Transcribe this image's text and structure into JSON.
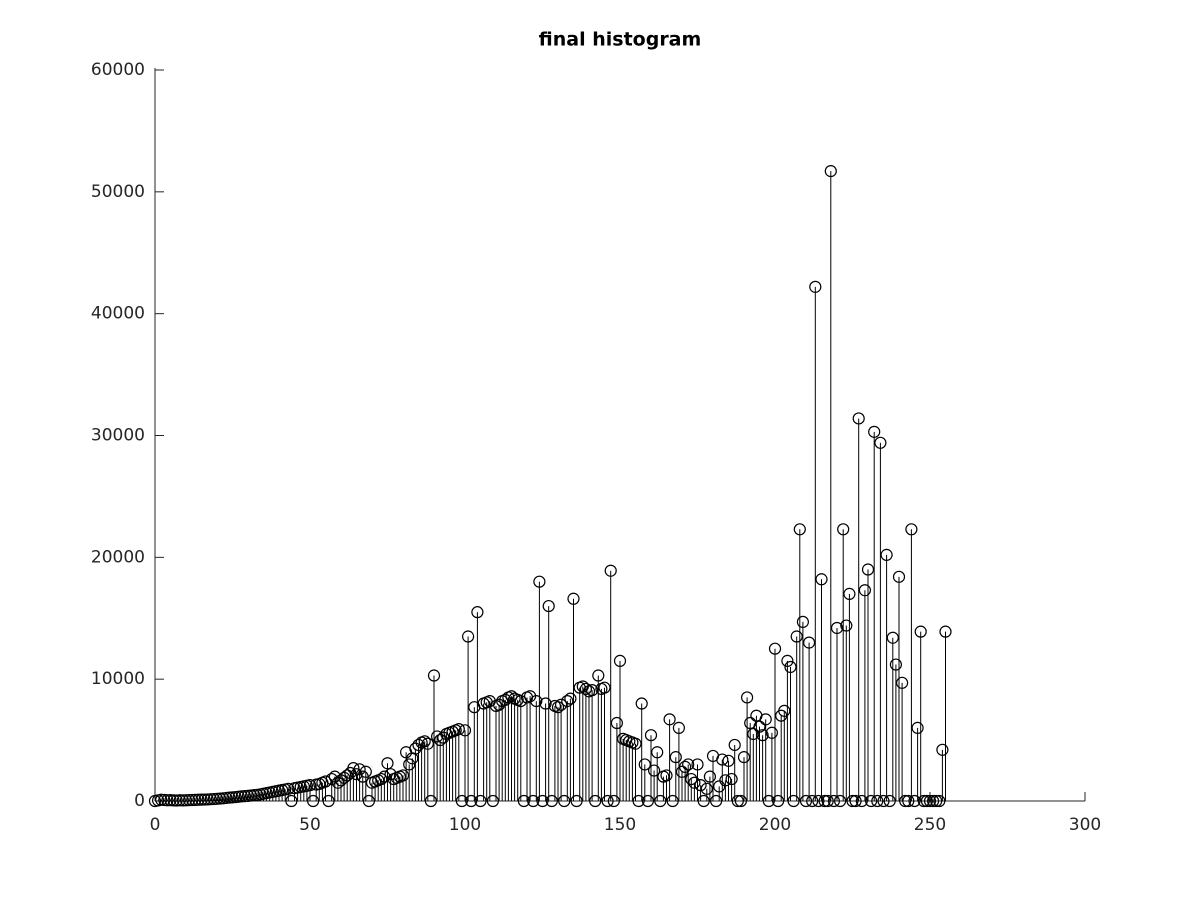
{
  "chart_data": {
    "type": "stem",
    "title": "final histogram",
    "color": "#000000",
    "x": [
      0,
      1,
      2,
      3,
      4,
      5,
      6,
      7,
      8,
      9,
      10,
      11,
      12,
      13,
      14,
      15,
      16,
      17,
      18,
      19,
      20,
      21,
      22,
      23,
      24,
      25,
      26,
      27,
      28,
      29,
      30,
      31,
      32,
      33,
      34,
      35,
      36,
      37,
      38,
      39,
      40,
      41,
      42,
      43,
      44,
      45,
      46,
      47,
      48,
      49,
      50,
      51,
      52,
      53,
      54,
      55,
      56,
      57,
      58,
      59,
      60,
      61,
      62,
      63,
      64,
      65,
      66,
      67,
      68,
      69,
      70,
      71,
      72,
      73,
      74,
      75,
      76,
      77,
      78,
      79,
      80,
      81,
      82,
      83,
      84,
      85,
      86,
      87,
      88,
      89,
      90,
      91,
      92,
      93,
      94,
      95,
      96,
      97,
      98,
      99,
      100,
      101,
      102,
      103,
      104,
      105,
      106,
      107,
      108,
      109,
      110,
      111,
      112,
      113,
      114,
      115,
      116,
      117,
      118,
      119,
      120,
      121,
      122,
      123,
      124,
      125,
      126,
      127,
      128,
      129,
      130,
      131,
      132,
      133,
      134,
      135,
      136,
      137,
      138,
      139,
      140,
      141,
      142,
      143,
      144,
      145,
      146,
      147,
      148,
      149,
      150,
      151,
      152,
      153,
      154,
      155,
      156,
      157,
      158,
      159,
      160,
      161,
      162,
      163,
      164,
      165,
      166,
      167,
      168,
      169,
      170,
      171,
      172,
      173,
      174,
      175,
      176,
      177,
      178,
      179,
      180,
      181,
      182,
      183,
      184,
      185,
      186,
      187,
      188,
      189,
      190,
      191,
      192,
      193,
      194,
      195,
      196,
      197,
      198,
      199,
      200,
      201,
      202,
      203,
      204,
      205,
      206,
      207,
      208,
      209,
      210,
      211,
      212,
      213,
      214,
      215,
      216,
      217,
      218,
      219,
      220,
      221,
      222,
      223,
      224,
      225,
      226,
      227,
      228,
      229,
      230,
      231,
      232,
      233,
      234,
      235,
      236,
      237,
      238,
      239,
      240,
      241,
      242,
      243,
      244,
      245,
      246,
      247,
      248,
      249,
      250,
      251,
      252,
      253,
      254,
      255
    ],
    "values": [
      0,
      50,
      100,
      80,
      60,
      70,
      50,
      40,
      60,
      50,
      60,
      70,
      80,
      90,
      100,
      110,
      120,
      130,
      150,
      160,
      180,
      200,
      220,
      250,
      280,
      300,
      320,
      350,
      380,
      400,
      420,
      450,
      480,
      500,
      550,
      600,
      650,
      700,
      750,
      800,
      850,
      900,
      950,
      1000,
      0,
      1050,
      1100,
      1150,
      1200,
      1250,
      1300,
      0,
      1350,
      1400,
      1500,
      1600,
      0,
      1800,
      2000,
      1500,
      1700,
      1900,
      2100,
      2300,
      2700,
      2200,
      2600,
      2000,
      2400,
      0,
      1500,
      1600,
      1700,
      1800,
      2000,
      3100,
      2200,
      1800,
      1900,
      2000,
      2100,
      4000,
      3000,
      3500,
      4300,
      4600,
      4800,
      4900,
      4700,
      0,
      10300,
      5300,
      5000,
      5200,
      5500,
      5600,
      5700,
      5800,
      5900,
      0,
      5800,
      13500,
      0,
      7700,
      15500,
      0,
      8000,
      8100,
      8200,
      0,
      7800,
      7900,
      8200,
      8300,
      8500,
      8600,
      8400,
      8300,
      8200,
      0,
      8500,
      8600,
      0,
      8200,
      18000,
      0,
      8000,
      16000,
      0,
      7800,
      7700,
      7900,
      0,
      8200,
      8400,
      16600,
      0,
      9300,
      9400,
      9200,
      9000,
      9100,
      0,
      10300,
      9200,
      9300,
      0,
      18900,
      0,
      6400,
      11500,
      5100,
      5000,
      4900,
      4800,
      4700,
      0,
      8000,
      3000,
      0,
      5400,
      2500,
      4000,
      0,
      2000,
      2100,
      6700,
      0,
      3600,
      6000,
      2400,
      2800,
      3000,
      1800,
      1500,
      3000,
      1300,
      0,
      1000,
      2000,
      3700,
      0,
      1200,
      3400,
      1700,
      3300,
      1800,
      4600,
      0,
      0,
      3600,
      8500,
      6400,
      5500,
      7000,
      6100,
      5400,
      6700,
      0,
      5600,
      12500,
      0,
      7000,
      7400,
      11500,
      11000,
      0,
      13500,
      22300,
      14700,
      0,
      13000,
      0,
      42200,
      0,
      18200,
      0,
      0,
      51700,
      0,
      14200,
      0,
      22300,
      14400,
      17000,
      0,
      0,
      31400,
      0,
      17300,
      19000,
      0,
      30300,
      0,
      29400,
      0,
      20200,
      0,
      13400,
      11200,
      18400,
      9700,
      0,
      0,
      22300,
      0,
      6000,
      13900,
      0,
      0,
      0,
      0,
      0,
      0,
      4200,
      13900
    ],
    "xlim": [
      0,
      300
    ],
    "xticks": [
      0,
      50,
      100,
      150,
      200,
      250,
      300
    ],
    "ylim": [
      0,
      60000
    ],
    "yticks": [
      0,
      10000,
      20000,
      30000,
      40000,
      50000,
      60000
    ]
  }
}
